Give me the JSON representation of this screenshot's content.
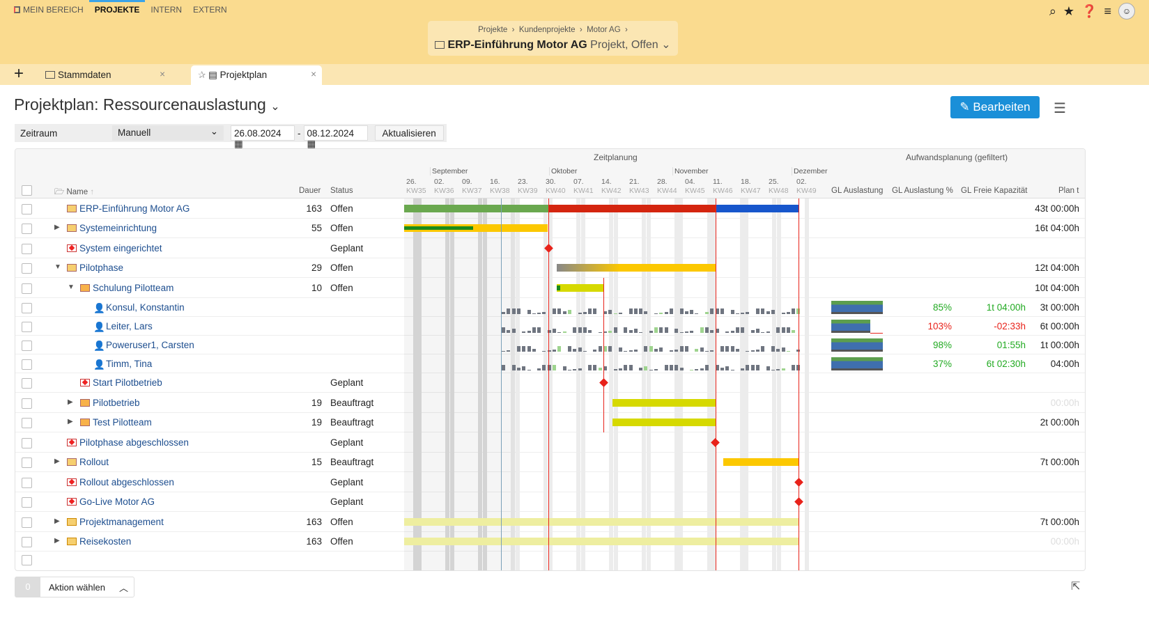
{
  "nav": {
    "items": [
      "MEIN BEREICH",
      "PROJEKTE",
      "INTERN",
      "EXTERN"
    ],
    "active": "PROJEKTE"
  },
  "breadcrumb": {
    "path": [
      "Projekte",
      "Kundenprojekte",
      "Motor AG"
    ],
    "title": "ERP-Einführung Motor AG",
    "subtitle": "Projekt, Offen"
  },
  "tabs": [
    {
      "label": "Stammdaten"
    },
    {
      "label": "Projektplan"
    }
  ],
  "page": {
    "title": "Projektplan: Ressourcenauslastung",
    "edit_label": "Bearbeiten"
  },
  "filter": {
    "label": "Zeitraum",
    "mode": "Manuell",
    "from": "26.08.2024",
    "sep": "-",
    "to": "08.12.2024",
    "refresh": "Aktualisieren"
  },
  "columns": {
    "name": "Name",
    "dauer": "Dauer",
    "status": "Status",
    "timeline_group": "Zeitplanung",
    "effort_group": "Aufwandsplanung (gefiltert)",
    "gl_auslastung": "GL Auslastung",
    "gl_auslastung_pct": "GL Auslastung %",
    "gl_freie": "GL Freie Kapazität",
    "plan": "Plan t"
  },
  "months": [
    "September",
    "Oktober",
    "November",
    "Dezember"
  ],
  "weeks": [
    [
      "26.",
      "KW35"
    ],
    [
      "02.",
      "KW36"
    ],
    [
      "09.",
      "KW37"
    ],
    [
      "16.",
      "KW38"
    ],
    [
      "23.",
      "KW39"
    ],
    [
      "30.",
      "KW40"
    ],
    [
      "07.",
      "KW41"
    ],
    [
      "14.",
      "KW42"
    ],
    [
      "21.",
      "KW43"
    ],
    [
      "28.",
      "KW44"
    ],
    [
      "04.",
      "KW45"
    ],
    [
      "11.",
      "KW46"
    ],
    [
      "18.",
      "KW47"
    ],
    [
      "25.",
      "KW48"
    ],
    [
      "02.",
      "KW49"
    ]
  ],
  "rows": [
    {
      "name": "ERP-Einführung Motor AG",
      "icon": "folder",
      "level": 0,
      "expander": "",
      "dauer": "163",
      "status": "Offen",
      "plan": "43t 00:00h"
    },
    {
      "name": "Systemeinrichtung",
      "icon": "folder",
      "level": 1,
      "expander": "right",
      "dauer": "55",
      "status": "Offen",
      "plan": "16t 04:00h"
    },
    {
      "name": "System eingerichtet",
      "icon": "milestone",
      "level": 1,
      "expander": "",
      "dauer": "",
      "status": "Geplant",
      "plan": ""
    },
    {
      "name": "Pilotphase",
      "icon": "folder",
      "level": 1,
      "expander": "down",
      "dauer": "29",
      "status": "Offen",
      "plan": "12t 04:00h"
    },
    {
      "name": "Schulung Pilotteam",
      "icon": "folder-task",
      "level": 2,
      "expander": "down",
      "dauer": "10",
      "status": "Offen",
      "plan": "10t 04:00h"
    },
    {
      "name": "Konsul, Konstantin",
      "icon": "person",
      "level": 3,
      "expander": "",
      "dauer": "",
      "status": "",
      "plan": "3t 00:00h",
      "pct": "85%",
      "free": "1t 04:00h",
      "state": "ok",
      "load": 0.85
    },
    {
      "name": "Leiter, Lars",
      "icon": "person",
      "level": 3,
      "expander": "",
      "dauer": "",
      "status": "",
      "plan": "6t 00:00h",
      "pct": "103%",
      "free": "-02:33h",
      "state": "over",
      "load": 1.03
    },
    {
      "name": "Poweruser1, Carsten",
      "icon": "person",
      "level": 3,
      "expander": "",
      "dauer": "",
      "status": "",
      "plan": "1t 00:00h",
      "pct": "98%",
      "free": "01:55h",
      "state": "ok",
      "load": 0.98
    },
    {
      "name": "Timm, Tina",
      "icon": "person",
      "level": 3,
      "expander": "",
      "dauer": "",
      "status": "",
      "plan": "04:00h",
      "pct": "37%",
      "free": "6t 02:30h",
      "state": "ok",
      "load": 0.37
    },
    {
      "name": "Start Pilotbetrieb",
      "icon": "milestone",
      "level": 2,
      "expander": "",
      "dauer": "",
      "status": "Geplant",
      "plan": ""
    },
    {
      "name": "Pilotbetrieb",
      "icon": "folder-task",
      "level": 2,
      "expander": "right",
      "dauer": "19",
      "status": "Beauftragt",
      "plan": "00:00h",
      "plan_muted": true
    },
    {
      "name": "Test Pilotteam",
      "icon": "folder-task",
      "level": 2,
      "expander": "right",
      "dauer": "19",
      "status": "Beauftragt",
      "plan": "2t 00:00h"
    },
    {
      "name": "Pilotphase abgeschlossen",
      "icon": "milestone",
      "level": 1,
      "expander": "",
      "dauer": "",
      "status": "Geplant",
      "plan": ""
    },
    {
      "name": "Rollout",
      "icon": "folder",
      "level": 1,
      "expander": "right",
      "dauer": "15",
      "status": "Beauftragt",
      "plan": "7t 00:00h"
    },
    {
      "name": "Rollout abgeschlossen",
      "icon": "milestone",
      "level": 1,
      "expander": "",
      "dauer": "",
      "status": "Geplant",
      "plan": ""
    },
    {
      "name": "Go-Live Motor AG",
      "icon": "milestone",
      "level": 1,
      "expander": "",
      "dauer": "",
      "status": "Geplant",
      "plan": ""
    },
    {
      "name": "Projektmanagement",
      "icon": "cost",
      "level": 1,
      "expander": "right",
      "dauer": "163",
      "status": "Offen",
      "plan": "7t 00:00h"
    },
    {
      "name": "Reisekosten",
      "icon": "cost",
      "level": 1,
      "expander": "right",
      "dauer": "163",
      "status": "Offen",
      "plan": "00:00h",
      "plan_muted": true
    }
  ],
  "footer": {
    "count": "0",
    "action": "Aktion wählen"
  },
  "colors": {
    "accent": "#1a8fd8",
    "header": "#fadb8f",
    "ok": "#22aa22",
    "over": "#e8221a",
    "today": "#e8221a"
  }
}
